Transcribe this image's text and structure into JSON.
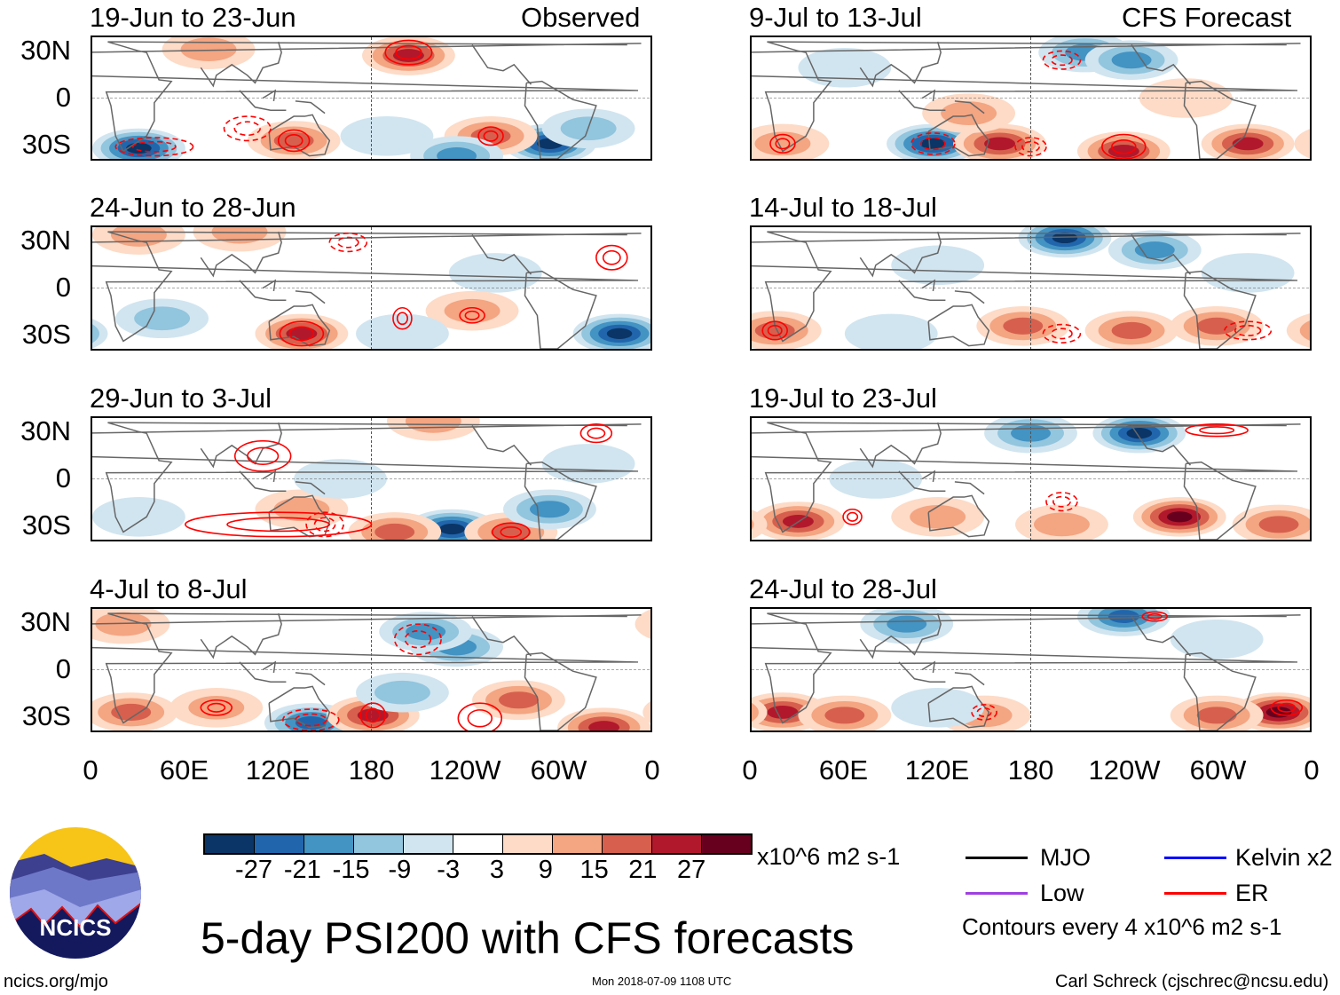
{
  "header": {
    "left_label": "Observed",
    "right_label": "CFS Forecast"
  },
  "y_ticks": [
    "30N",
    "0",
    "30S"
  ],
  "x_ticks": [
    "0",
    "60E",
    "120E",
    "180",
    "120W",
    "60W",
    "0"
  ],
  "colorbar": {
    "ticks": [
      "-27",
      "-21",
      "-15",
      "-9",
      "-3",
      "3",
      "9",
      "15",
      "21",
      "27"
    ],
    "colors": [
      "#0b3566",
      "#2166ac",
      "#4393c3",
      "#92c5de",
      "#d1e5f0",
      "#ffffff",
      "#fddbc7",
      "#f4a582",
      "#d6604d",
      "#b2182b",
      "#67001f"
    ],
    "units": "x10^6 m2 s-1"
  },
  "legend": {
    "items": [
      {
        "label": "MJO",
        "color": "#000000"
      },
      {
        "label": "Kelvin x2",
        "color": "#0000ff"
      },
      {
        "label": "Low",
        "color": "#a040e0"
      },
      {
        "label": "ER",
        "color": "#ff0000"
      }
    ],
    "contour_note": "Contours every 4 x10^6 m2 s-1"
  },
  "title": "5-day PSI200 with CFS forecasts",
  "logo_text": "NCICS",
  "footer": {
    "url": "ncics.org/mjo",
    "timestamp": "Mon 2018-07-09 1108 UTC",
    "author": "Carl Schreck (cjschrec@ncsu.edu)"
  },
  "chart_data": {
    "type": "heatmap",
    "variable": "PSI200 anomaly (x10^6 m2 s-1)",
    "lon_range": [
      0,
      360
    ],
    "lat_range": [
      -40,
      40
    ],
    "panels": [
      {
        "title": "19-Jun to 23-Jun",
        "source": "Observed",
        "features": [
          [
            30,
            -33,
            -28
          ],
          [
            130,
            -28,
            17
          ],
          [
            204,
            28,
            22
          ],
          [
            295,
            -30,
            -28
          ],
          [
            257,
            -25,
            18
          ],
          [
            235,
            -38,
            -20
          ],
          [
            75,
            32,
            9
          ],
          [
            190,
            -25,
            -9
          ],
          [
            320,
            -20,
            -10
          ]
        ],
        "contours": [
          [
            130,
            -28,
            10,
            7,
            1
          ],
          [
            257,
            -25,
            8,
            6,
            1
          ],
          [
            204,
            30,
            15,
            8,
            1
          ],
          [
            40,
            -32,
            25,
            6,
            -1
          ],
          [
            100,
            -20,
            15,
            8,
            -1
          ]
        ]
      },
      {
        "title": "24-Jun to 28-Jun",
        "source": "Observed",
        "features": [
          [
            135,
            -30,
            22
          ],
          [
            340,
            -30,
            -28
          ],
          [
            45,
            -20,
            -15
          ],
          [
            95,
            37,
            10
          ],
          [
            30,
            35,
            9
          ],
          [
            260,
            10,
            -4
          ],
          [
            245,
            -15,
            10
          ],
          [
            200,
            -30,
            -9
          ]
        ],
        "contours": [
          [
            135,
            -30,
            14,
            8,
            1
          ],
          [
            200,
            -20,
            6,
            7,
            1
          ],
          [
            245,
            -18,
            8,
            5,
            1
          ],
          [
            335,
            20,
            10,
            8,
            1
          ],
          [
            165,
            30,
            12,
            6,
            -1
          ]
        ]
      },
      {
        "title": "29-Jun to 3-Jul",
        "source": "Observed",
        "features": [
          [
            232,
            -33,
            -28
          ],
          [
            270,
            -35,
            16
          ],
          [
            195,
            -35,
            16
          ],
          [
            295,
            -20,
            -16
          ],
          [
            135,
            -20,
            10
          ],
          [
            30,
            -25,
            -9
          ],
          [
            220,
            38,
            10
          ],
          [
            160,
            0,
            -4
          ],
          [
            320,
            10,
            -9
          ]
        ],
        "contours": [
          [
            120,
            -30,
            60,
            8,
            1
          ],
          [
            150,
            -30,
            12,
            8,
            -1
          ],
          [
            110,
            15,
            18,
            10,
            1
          ],
          [
            270,
            -35,
            12,
            6,
            1
          ],
          [
            325,
            30,
            10,
            6,
            1
          ]
        ]
      },
      {
        "title": "4-Jul to 8-Jul",
        "source": "Observed",
        "features": [
          [
            141,
            -35,
            -22
          ],
          [
            181,
            -30,
            22
          ],
          [
            25,
            -28,
            16
          ],
          [
            330,
            -38,
            22
          ],
          [
            235,
            15,
            -16
          ],
          [
            215,
            25,
            -16
          ],
          [
            275,
            -20,
            16
          ],
          [
            80,
            -25,
            10
          ],
          [
            200,
            -15,
            -10
          ],
          [
            20,
            30,
            9
          ]
        ],
        "contours": [
          [
            141,
            -33,
            18,
            7,
            -1
          ],
          [
            181,
            -30,
            8,
            8,
            1
          ],
          [
            250,
            -32,
            14,
            10,
            1
          ],
          [
            210,
            20,
            15,
            10,
            -1
          ],
          [
            80,
            -25,
            10,
            5,
            1
          ]
        ]
      },
      {
        "title": "9-Jul to 13-Jul",
        "source": "CFS Forecast",
        "features": [
          [
            215,
            30,
            -16
          ],
          [
            245,
            25,
            -16
          ],
          [
            117,
            -30,
            -28
          ],
          [
            160,
            -30,
            22
          ],
          [
            240,
            -35,
            22
          ],
          [
            320,
            -30,
            22
          ],
          [
            20,
            -30,
            10
          ],
          [
            140,
            -10,
            10
          ],
          [
            60,
            20,
            -9
          ],
          [
            280,
            0,
            8
          ]
        ],
        "contours": [
          [
            117,
            -30,
            14,
            7,
            -1
          ],
          [
            240,
            -32,
            14,
            8,
            1
          ],
          [
            180,
            -32,
            10,
            6,
            -1
          ],
          [
            20,
            -30,
            8,
            6,
            1
          ],
          [
            200,
            25,
            12,
            6,
            -1
          ]
        ]
      },
      {
        "title": "14-Jul to 18-Jul",
        "source": "CFS Forecast",
        "features": [
          [
            202,
            33,
            -28
          ],
          [
            260,
            25,
            -16
          ],
          [
            15,
            -28,
            16
          ],
          [
            175,
            -25,
            16
          ],
          [
            245,
            -28,
            16
          ],
          [
            300,
            -25,
            16
          ],
          [
            120,
            15,
            -9
          ],
          [
            90,
            -30,
            -4
          ],
          [
            320,
            10,
            -9
          ]
        ],
        "contours": [
          [
            15,
            -28,
            8,
            6,
            1
          ],
          [
            320,
            -28,
            15,
            6,
            -1
          ],
          [
            200,
            -30,
            12,
            6,
            -1
          ]
        ]
      },
      {
        "title": "19-Jul to 23-Jul",
        "source": "CFS Forecast",
        "features": [
          [
            250,
            30,
            -28
          ],
          [
            180,
            30,
            -16
          ],
          [
            30,
            -28,
            22
          ],
          [
            276,
            -25,
            28
          ],
          [
            120,
            -25,
            10
          ],
          [
            340,
            -30,
            16
          ],
          [
            80,
            0,
            -4
          ],
          [
            200,
            -30,
            10
          ]
        ],
        "contours": [
          [
            300,
            32,
            20,
            4,
            1
          ],
          [
            200,
            -15,
            10,
            6,
            -1
          ],
          [
            65,
            -25,
            6,
            5,
            1
          ]
        ]
      },
      {
        "title": "24-Jul to 28-Jul",
        "source": "CFS Forecast",
        "features": [
          [
            240,
            35,
            -22
          ],
          [
            100,
            30,
            -16
          ],
          [
            20,
            -28,
            22
          ],
          [
            340,
            -28,
            28
          ],
          [
            300,
            -30,
            16
          ],
          [
            150,
            -30,
            10
          ],
          [
            120,
            -25,
            -4
          ],
          [
            60,
            -30,
            16
          ],
          [
            300,
            20,
            -9
          ]
        ],
        "contours": [
          [
            345,
            -25,
            10,
            5,
            1
          ],
          [
            150,
            -28,
            8,
            5,
            -1
          ],
          [
            260,
            35,
            8,
            3,
            1
          ]
        ]
      }
    ]
  }
}
